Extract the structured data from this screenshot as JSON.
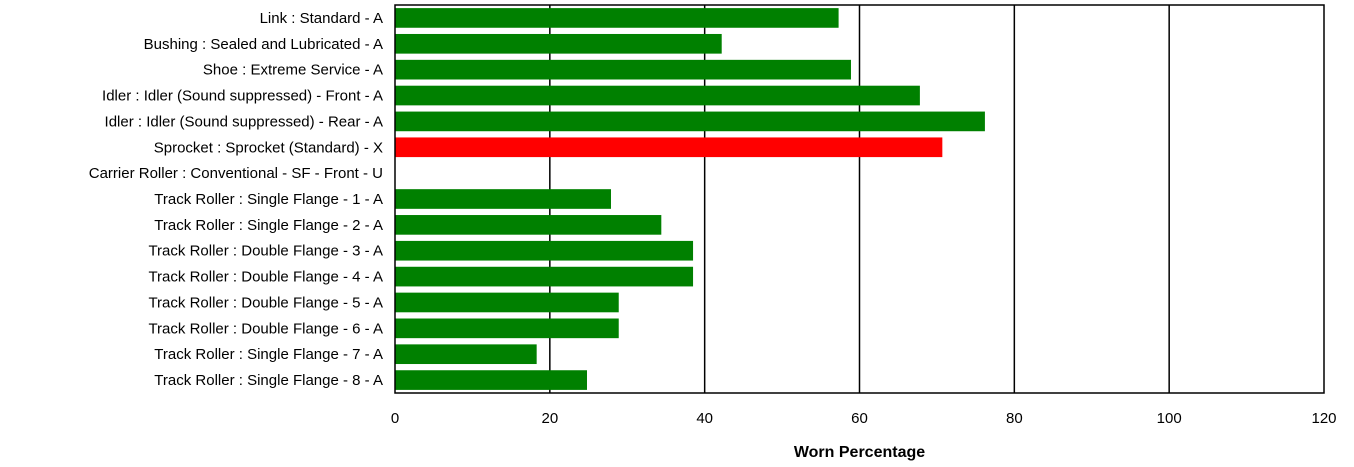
{
  "chart_data": {
    "type": "bar",
    "orientation": "horizontal",
    "title": "",
    "xlabel": "Worn Percentage",
    "ylabel": "",
    "xlim": [
      0,
      120
    ],
    "xticks": [
      0,
      20,
      40,
      60,
      80,
      100,
      120
    ],
    "grid": "vertical",
    "legend": "none",
    "colors": {
      "normal": "#008000",
      "alert": "#ff0000",
      "grid": "#000000"
    },
    "categories": [
      "Link : Standard - A",
      "Bushing : Sealed  and  Lubricated - A",
      "Shoe : Extreme Service - A",
      "Idler : Idler (Sound suppressed) - Front - A",
      "Idler : Idler (Sound suppressed) - Rear - A",
      "Sprocket : Sprocket (Standard) - X",
      "Carrier Roller : Conventional - SF - Front - U",
      "Track Roller : Single Flange - 1 - A",
      "Track Roller : Single Flange - 2 - A",
      "Track Roller : Double Flange - 3 - A",
      "Track Roller : Double Flange - 4 - A",
      "Track Roller : Double Flange - 5 - A",
      "Track Roller : Double Flange - 6 - A",
      "Track Roller : Single Flange - 7 - A",
      "Track Roller : Single Flange - 8 - A"
    ],
    "values": [
      57.3,
      42.2,
      58.9,
      67.8,
      76.2,
      70.7,
      0,
      27.9,
      34.4,
      38.5,
      38.5,
      28.9,
      28.9,
      18.3,
      24.8
    ],
    "bar_colors": [
      "#008000",
      "#008000",
      "#008000",
      "#008000",
      "#008000",
      "#ff0000",
      "#008000",
      "#008000",
      "#008000",
      "#008000",
      "#008000",
      "#008000",
      "#008000",
      "#008000",
      "#008000"
    ]
  }
}
